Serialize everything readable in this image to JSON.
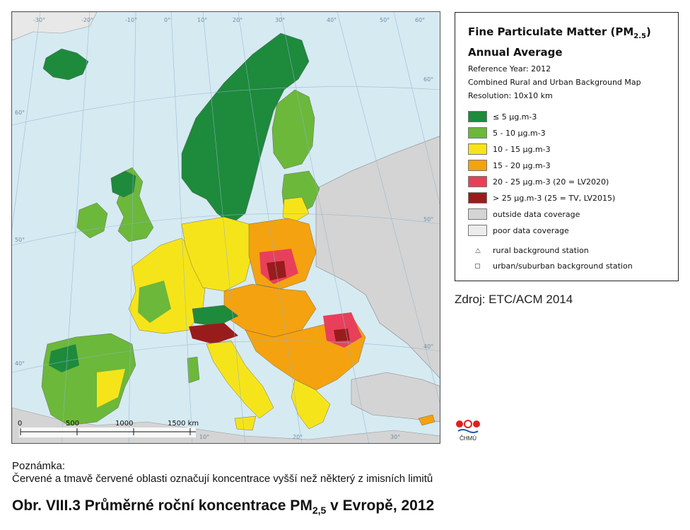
{
  "legend": {
    "title_line1": "Fine Particulate Matter (PM",
    "title_sub": "2.5",
    "title_line1_end": ")",
    "title_line2": "Annual Average",
    "reference_year": "Reference Year: 2012",
    "map_type": "Combined Rural and Urban Background Map",
    "resolution": "Resolution: 10x10 km",
    "classes": [
      {
        "label": "≤ 5 µg.m-3",
        "color": "#1e8a3c"
      },
      {
        "label": "5 - 10 µg.m-3",
        "color": "#6cb83a"
      },
      {
        "label": "10 - 15 µg.m-3",
        "color": "#f6e41a"
      },
      {
        "label": "15 - 20 µg.m-3",
        "color": "#f4a20f"
      },
      {
        "label": "20 - 25 µg.m-3  (20 = LV2020)",
        "color": "#e8405a"
      },
      {
        "label": "> 25 µg.m-3  (25 = TV, LV2015)",
        "color": "#991c1c"
      },
      {
        "label": "outside data coverage",
        "color": "#d4d4d4"
      },
      {
        "label": "poor data coverage",
        "color": "#ececec"
      }
    ],
    "stations": [
      {
        "label": "rural background station",
        "icon": "triangle-icon"
      },
      {
        "label": "urban/suburban background station",
        "icon": "square-icon"
      }
    ]
  },
  "map": {
    "longitude_labels": [
      "-30°",
      "-20°",
      "-10°",
      "0°",
      "10°",
      "20°",
      "30°",
      "40°",
      "50°",
      "60°"
    ],
    "bottom_longitude_labels": [
      "10°",
      "20°",
      "30°"
    ],
    "latitude_labels_left": [
      "60°",
      "50°",
      "40°"
    ],
    "latitude_labels_right": [
      "60°",
      "50°",
      "40°"
    ],
    "scale_ticks": [
      "0",
      "500",
      "1000",
      "1500 km"
    ],
    "colors": {
      "sea": "#d6eaf2",
      "outside": "#d4d4d4",
      "grid": "#8fb6cf"
    }
  },
  "source": "Zdroj: ETC/ACM 2014",
  "logo_label": "ČHMÚ",
  "note": {
    "title": "Poznámka:",
    "text": "Červené a tmavě červené oblasti označují koncentrace vyšší než některý z imisních limitů"
  },
  "caption": {
    "prefix": "Obr. VIII.3  Průměrné roční koncentrace PM",
    "sub": "2,5",
    "suffix": " v Evropě, 2012"
  }
}
